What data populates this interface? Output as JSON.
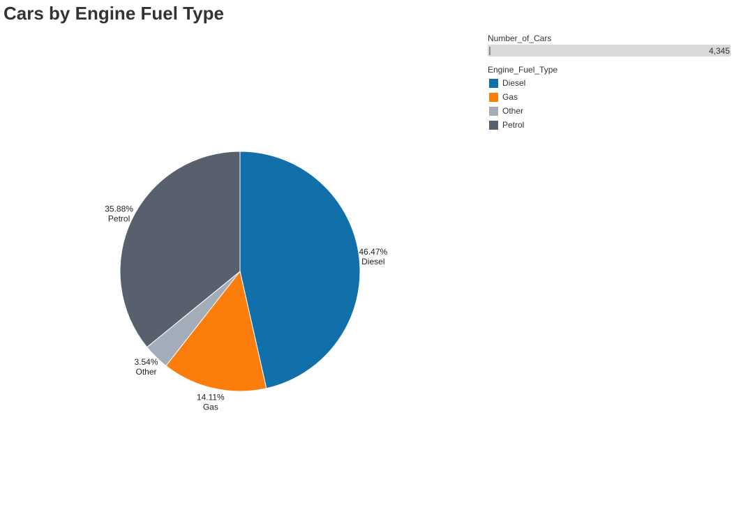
{
  "chart_data": {
    "type": "pie",
    "title": "Cars by Engine Fuel Type",
    "slices": [
      {
        "label": "Diesel",
        "value": 46.47,
        "percent_label": "46.47%",
        "color": "#1170aa"
      },
      {
        "label": "Gas",
        "value": 14.11,
        "percent_label": "14.11%",
        "color": "#fc7d0b"
      },
      {
        "label": "Other",
        "value": 3.54,
        "percent_label": "3.54%",
        "color": "#a3acb9"
      },
      {
        "label": "Petrol",
        "value": 35.88,
        "percent_label": "35.88%",
        "color": "#57606c"
      }
    ],
    "size_legend": {
      "title": "Number_of_Cars",
      "value_label": "4,345"
    },
    "color_legend": {
      "title": "Engine_Fuel_Type",
      "placement": "top-right"
    }
  }
}
